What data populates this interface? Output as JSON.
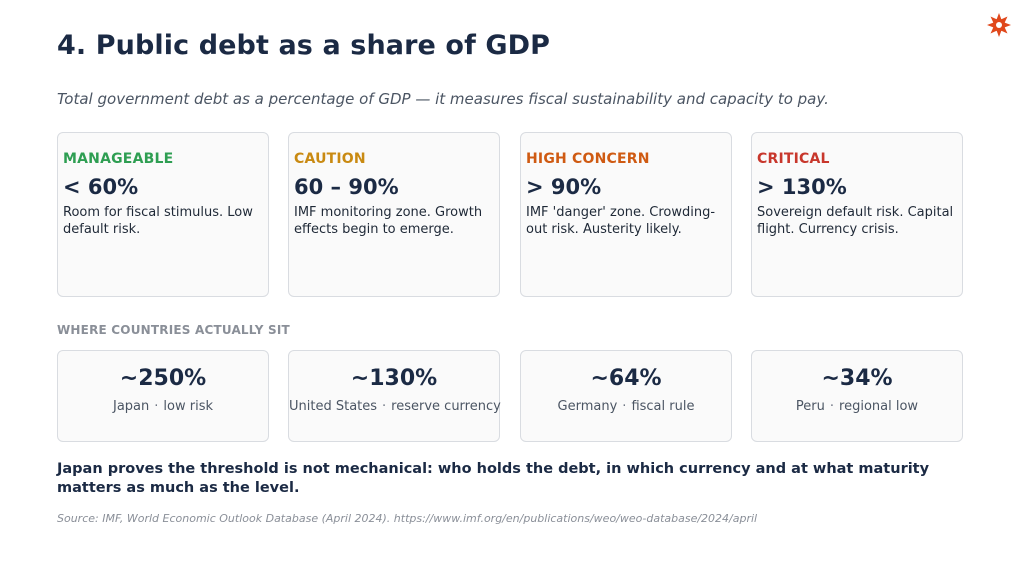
{
  "page": {
    "title": "4. Public debt as a share of GDP",
    "subtitle": "Total government debt as a percentage of GDP — it measures fiscal sustainability and capacity to pay."
  },
  "brand": {
    "icon": "sun-star-logo-icon",
    "color": "#e0481c"
  },
  "thresholds": [
    {
      "label": "MANAGEABLE",
      "color": "#2e9e52",
      "value": "< 60%",
      "description": "Room for fiscal stimulus. Low default risk."
    },
    {
      "label": "CAUTION",
      "color": "#c98a12",
      "value": "60 – 90%",
      "description": "IMF monitoring zone. Growth effects begin to emerge."
    },
    {
      "label": "HIGH CONCERN",
      "color": "#cf5a12",
      "value": "> 90%",
      "description": "IMF 'danger' zone. Crowding-out risk. Austerity likely."
    },
    {
      "label": "CRITICAL",
      "color": "#c8372c",
      "value": "> 130%",
      "description": "Sovereign default risk. Capital flight. Currency crisis."
    }
  ],
  "section_label": "WHERE COUNTRIES ACTUALLY SIT",
  "countries": [
    {
      "value": "~250%",
      "country": "Japan",
      "separator": "·",
      "note": "low risk"
    },
    {
      "value": "~130%",
      "country": "United States",
      "separator": "·",
      "note": "reserve currency"
    },
    {
      "value": "~64%",
      "country": "Germany",
      "separator": "·",
      "note": "fiscal rule"
    },
    {
      "value": "~34%",
      "country": "Peru",
      "separator": "·",
      "note": "regional low"
    }
  ],
  "takeaway": "Japan proves the threshold is not mechanical: who holds the debt, in which currency and at what maturity matters as much as the level.",
  "source": "Source: IMF, World Economic Outlook Database (April 2024). https://www.imf.org/en/publications/weo/weo-database/2024/april"
}
